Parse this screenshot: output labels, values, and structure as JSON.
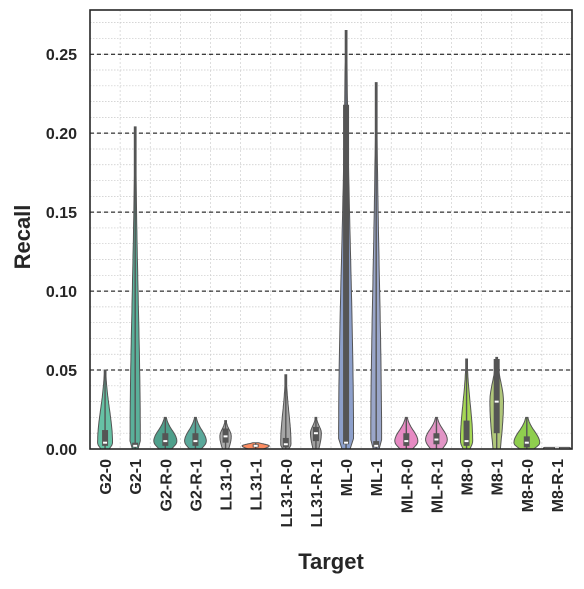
{
  "chart_data": {
    "type": "violin",
    "xlabel": "Target",
    "ylabel": "Recall",
    "ylim": [
      0,
      0.278
    ],
    "yticks": [
      0.0,
      0.05,
      0.1,
      0.15,
      0.2,
      0.25
    ],
    "ytick_labels": [
      "0.00",
      "0.05",
      "0.10",
      "0.15",
      "0.20",
      "0.25"
    ],
    "grid": "major dashed, minor dotted",
    "categories": [
      "G2-0",
      "G2-1",
      "G2-R-0",
      "G2-R-1",
      "LL31-0",
      "LL31-1",
      "LL31-R-0",
      "LL31-R-1",
      "ML-0",
      "ML-1",
      "ML-R-0",
      "ML-R-1",
      "M8-0",
      "M8-1",
      "M8-R-0",
      "M8-R-1"
    ],
    "colors": [
      "#66c2a5",
      "#5ab09a",
      "#4fa08c",
      "#5aa89a",
      "#a9a9a9",
      "#fc8d62",
      "#a5a5a5",
      "#a0a0a0",
      "#8da0cb",
      "#9aa6c9",
      "#e78ac3",
      "#e295c6",
      "#a6d854",
      "#b0c77a",
      "#8fce4e",
      "#bfbfbf"
    ],
    "series": [
      {
        "min": 0.0,
        "q1": 0.002,
        "median": 0.004,
        "q3": 0.012,
        "max": 0.05,
        "width": 0.55
      },
      {
        "min": 0.0,
        "q1": 0.001,
        "median": 0.002,
        "q3": 0.004,
        "max": 0.204,
        "width": 0.38
      },
      {
        "min": 0.0,
        "q1": 0.002,
        "median": 0.005,
        "q3": 0.01,
        "max": 0.02,
        "width": 0.85
      },
      {
        "min": 0.0,
        "q1": 0.002,
        "median": 0.005,
        "q3": 0.01,
        "max": 0.02,
        "width": 0.8
      },
      {
        "min": 0.0,
        "q1": 0.004,
        "median": 0.008,
        "q3": 0.013,
        "max": 0.018,
        "width": 0.42
      },
      {
        "min": 0.0,
        "q1": 0.001,
        "median": 0.002,
        "q3": 0.003,
        "max": 0.004,
        "width": 1.0
      },
      {
        "min": 0.0,
        "q1": 0.001,
        "median": 0.003,
        "q3": 0.007,
        "max": 0.047,
        "width": 0.38
      },
      {
        "min": 0.0,
        "q1": 0.005,
        "median": 0.01,
        "q3": 0.014,
        "max": 0.02,
        "width": 0.4
      },
      {
        "min": 0.0,
        "q1": 0.003,
        "median": 0.004,
        "q3": 0.218,
        "max": 0.265,
        "width": 0.55
      },
      {
        "min": 0.0,
        "q1": 0.001,
        "median": 0.002,
        "q3": 0.005,
        "max": 0.232,
        "width": 0.4
      },
      {
        "min": 0.0,
        "q1": 0.002,
        "median": 0.005,
        "q3": 0.01,
        "max": 0.02,
        "width": 0.85
      },
      {
        "min": 0.0,
        "q1": 0.003,
        "median": 0.006,
        "q3": 0.01,
        "max": 0.02,
        "width": 0.8
      },
      {
        "min": 0.0,
        "q1": 0.002,
        "median": 0.005,
        "q3": 0.018,
        "max": 0.057,
        "width": 0.45
      },
      {
        "min": 0.0,
        "q1": 0.01,
        "median": 0.03,
        "q3": 0.057,
        "max": 0.058,
        "width": 0.5
      },
      {
        "min": 0.0,
        "q1": 0.001,
        "median": 0.004,
        "q3": 0.008,
        "max": 0.02,
        "width": 0.95
      },
      {
        "min": 0.0,
        "q1": 0.0,
        "median": 0.0005,
        "q3": 0.001,
        "max": 0.001,
        "width": 1.0
      }
    ]
  }
}
